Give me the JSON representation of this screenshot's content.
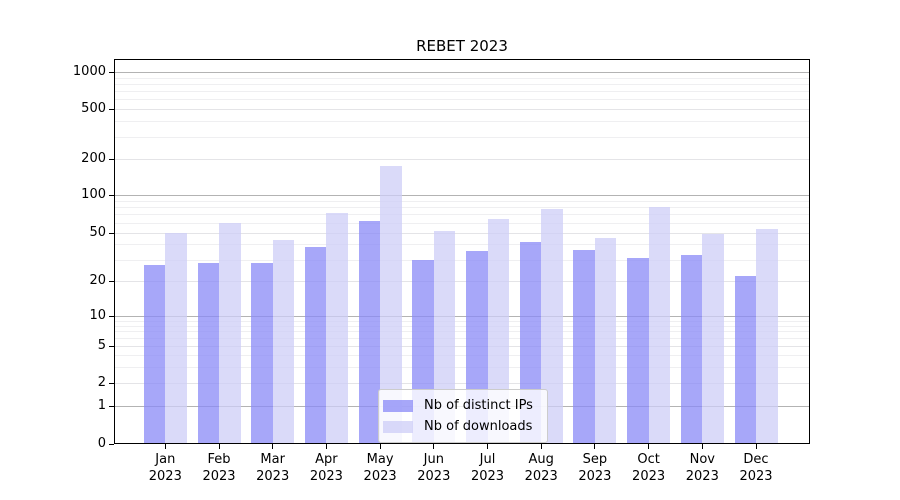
{
  "chart_data": {
    "type": "bar",
    "title": "REBET 2023",
    "categories": [
      "Jan 2023",
      "Feb 2023",
      "Mar 2023",
      "Apr 2023",
      "May 2023",
      "Jun 2023",
      "Jul 2023",
      "Aug 2023",
      "Sep 2023",
      "Oct 2023",
      "Nov 2023",
      "Dec 2023"
    ],
    "series": [
      {
        "name": "Nb of distinct IPs",
        "color": "rgba(138,138,247,0.75)",
        "values": [
          27,
          28,
          28,
          38,
          62,
          30,
          35,
          42,
          36,
          31,
          33,
          22
        ]
      },
      {
        "name": "Nb of downloads",
        "color": "rgba(205,205,247,0.75)",
        "values": [
          50,
          60,
          43,
          72,
          175,
          51,
          64,
          77,
          45,
          80,
          49,
          53
        ]
      }
    ],
    "xlabel": "",
    "ylabel": "",
    "yscale": "symlog",
    "ylim": [
      0,
      1400
    ],
    "yticks": [
      0,
      1,
      2,
      5,
      10,
      20,
      50,
      100,
      200,
      500,
      1000
    ],
    "grid": "horizontal major and minor gridlines",
    "legend_position": "lower center inside axes"
  },
  "colors": {
    "grid_decade": "#b3b3b3",
    "grid_labeled": "#e4e4e7",
    "grid_minor": "#efeff1",
    "axis": "#000000",
    "background": "#ffffff"
  }
}
